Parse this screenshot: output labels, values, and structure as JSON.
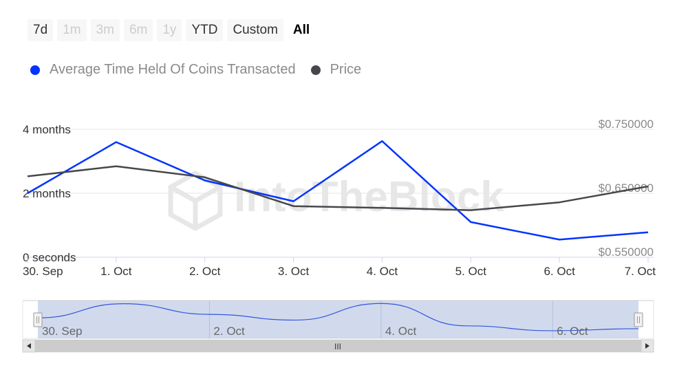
{
  "range_selector": {
    "buttons": [
      {
        "label": "7d",
        "state": "normal"
      },
      {
        "label": "1m",
        "state": "disabled"
      },
      {
        "label": "3m",
        "state": "disabled"
      },
      {
        "label": "6m",
        "state": "disabled"
      },
      {
        "label": "1y",
        "state": "disabled"
      },
      {
        "label": "YTD",
        "state": "normal"
      },
      {
        "label": "Custom",
        "state": "normal"
      },
      {
        "label": "All",
        "state": "selected"
      }
    ]
  },
  "legend": [
    {
      "label": "Average Time Held Of Coins Transacted",
      "color": "#0033ff"
    },
    {
      "label": "Price",
      "color": "#45474c"
    }
  ],
  "navigator": {
    "labels": [
      "30. Sep",
      "2. Oct",
      "4. Oct",
      "6. Oct"
    ],
    "scroll_grip": "III"
  },
  "chart_data": {
    "type": "line",
    "x": [
      "30. Sep",
      "1. Oct",
      "2. Oct",
      "3. Oct",
      "4. Oct",
      "5. Oct",
      "6. Oct",
      "7. Oct"
    ],
    "series": [
      {
        "name": "Average Time Held Of Coins Transacted",
        "axis": "left",
        "color": "#0033ff",
        "values_months": [
          2.0,
          3.6,
          2.4,
          1.75,
          3.63,
          1.1,
          0.55,
          0.78
        ]
      },
      {
        "name": "Price",
        "axis": "right",
        "color": "#45474c",
        "values": [
          0.6765,
          0.6922,
          0.6749,
          0.6299,
          0.6271,
          0.6236,
          0.6358,
          0.6607
        ]
      }
    ],
    "left_axis": {
      "ticks": [
        "0 seconds",
        "2 months",
        "4 months"
      ],
      "tick_values": [
        0,
        2,
        4
      ],
      "range": [
        0,
        4
      ]
    },
    "right_axis": {
      "ticks": [
        "$0.550000",
        "$0.650000",
        "$0.750000"
      ],
      "tick_values": [
        0.55,
        0.65,
        0.75
      ],
      "range": [
        0.55,
        0.75
      ]
    },
    "grid": true,
    "watermark": "IntoTheBlock"
  }
}
